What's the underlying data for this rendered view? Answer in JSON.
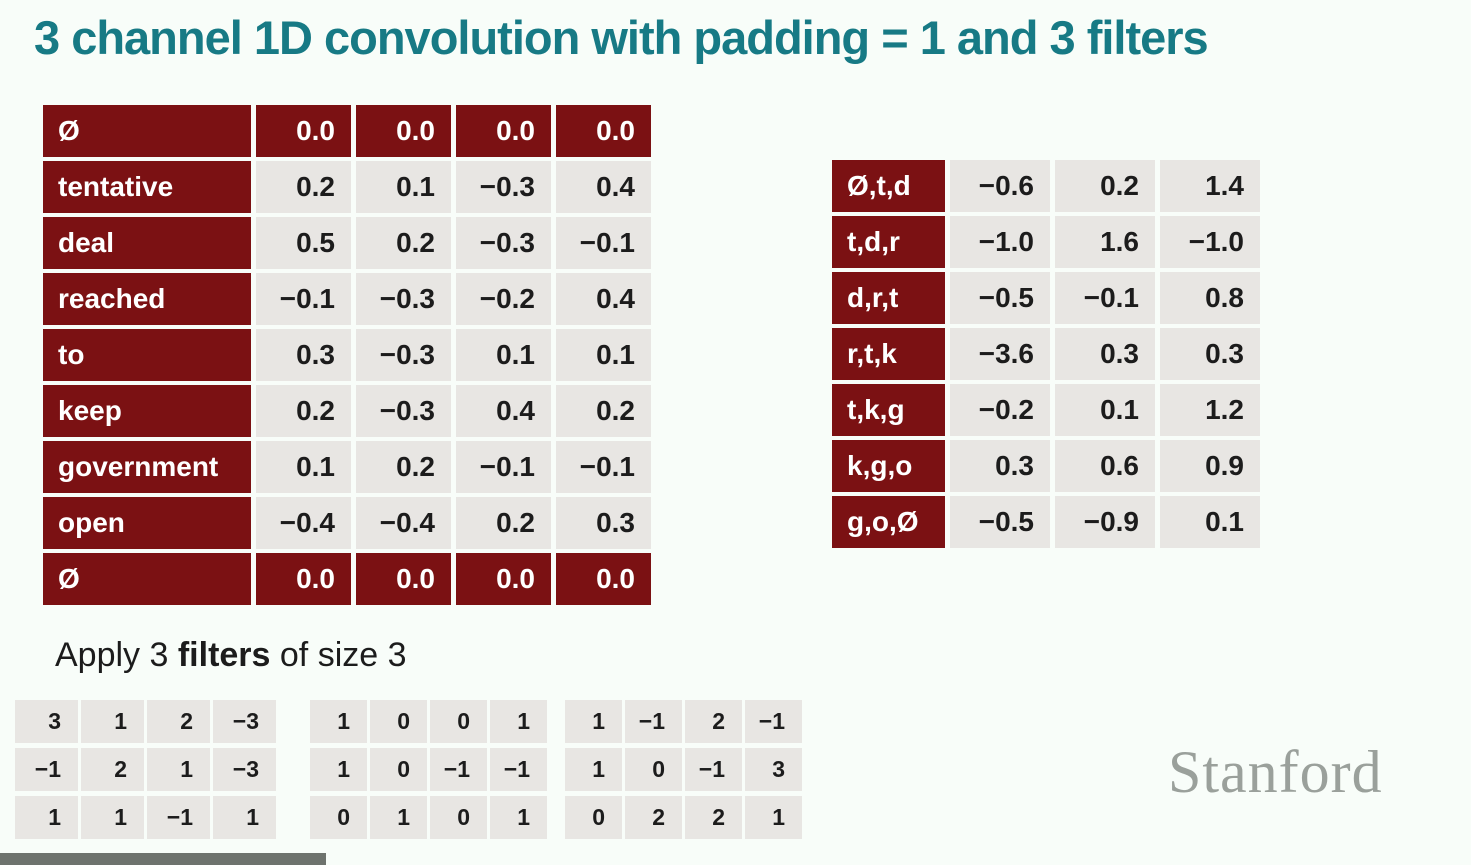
{
  "title": "3 channel 1D convolution with padding = 1 and 3 filters",
  "colors": {
    "accent_teal": "#177a85",
    "cardinal_red": "#7b1113",
    "cell_gray": "#e8e6e3",
    "background": "#f8fdf9",
    "stanford_gray": "#9aa09b"
  },
  "input_table": {
    "rows": [
      {
        "label": "Ø",
        "pad": true,
        "values": [
          "0.0",
          "0.0",
          "0.0",
          "0.0"
        ]
      },
      {
        "label": "tentative",
        "values": [
          "0.2",
          "0.1",
          "−0.3",
          "0.4"
        ]
      },
      {
        "label": "deal",
        "values": [
          "0.5",
          "0.2",
          "−0.3",
          "−0.1"
        ]
      },
      {
        "label": "reached",
        "values": [
          "−0.1",
          "−0.3",
          "−0.2",
          "0.4"
        ]
      },
      {
        "label": "to",
        "values": [
          "0.3",
          "−0.3",
          "0.1",
          "0.1"
        ]
      },
      {
        "label": "keep",
        "values": [
          "0.2",
          "−0.3",
          "0.4",
          "0.2"
        ]
      },
      {
        "label": "government",
        "values": [
          "0.1",
          "0.2",
          "−0.1",
          "−0.1"
        ]
      },
      {
        "label": "open",
        "values": [
          "−0.4",
          "−0.4",
          "0.2",
          "0.3"
        ]
      },
      {
        "label": "Ø",
        "pad": true,
        "values": [
          "0.0",
          "0.0",
          "0.0",
          "0.0"
        ]
      }
    ]
  },
  "output_table": {
    "rows": [
      {
        "label": "Ø,t,d",
        "values": [
          "−0.6",
          "0.2",
          "1.4"
        ]
      },
      {
        "label": "t,d,r",
        "values": [
          "−1.0",
          "1.6",
          "−1.0"
        ]
      },
      {
        "label": "d,r,t",
        "values": [
          "−0.5",
          "−0.1",
          "0.8"
        ]
      },
      {
        "label": "r,t,k",
        "values": [
          "−3.6",
          "0.3",
          "0.3"
        ]
      },
      {
        "label": "t,k,g",
        "values": [
          "−0.2",
          "0.1",
          "1.2"
        ]
      },
      {
        "label": "k,g,o",
        "values": [
          "0.3",
          "0.6",
          "0.9"
        ]
      },
      {
        "label": "g,o,Ø",
        "values": [
          "−0.5",
          "−0.9",
          "0.1"
        ]
      }
    ]
  },
  "apply_line": {
    "prefix": "Apply 3 ",
    "bold": "filters",
    "suffix": " of size 3"
  },
  "filters": [
    {
      "rows": [
        [
          "3",
          "1",
          "2",
          "−3"
        ],
        [
          "−1",
          "2",
          "1",
          "−3"
        ],
        [
          "1",
          "1",
          "−1",
          "1"
        ]
      ]
    },
    {
      "rows": [
        [
          "1",
          "0",
          "0",
          "1"
        ],
        [
          "1",
          "0",
          "−1",
          "−1"
        ],
        [
          "0",
          "1",
          "0",
          "1"
        ]
      ]
    },
    {
      "rows": [
        [
          "1",
          "−1",
          "2",
          "−1"
        ],
        [
          "1",
          "0",
          "−1",
          "3"
        ],
        [
          "0",
          "2",
          "2",
          "1"
        ]
      ]
    }
  ],
  "branding": {
    "wordmark": "Stanford"
  }
}
